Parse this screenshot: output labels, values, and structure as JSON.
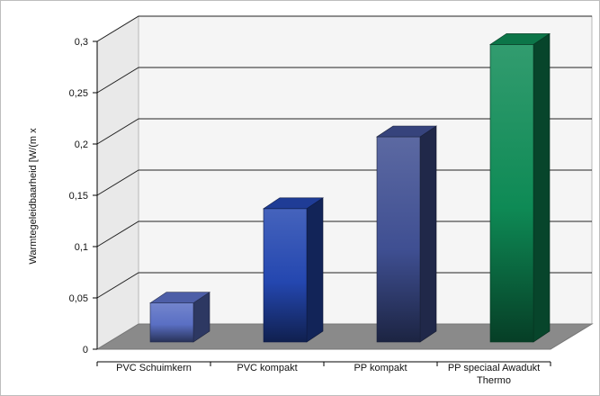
{
  "chart_data": {
    "type": "bar",
    "title": "",
    "xlabel": "",
    "ylabel": "Warmtegeleidbaarheid [W/(m x",
    "ylim": [
      0,
      0.3
    ],
    "ytick_values": [
      0,
      0.05,
      0.1,
      0.15,
      0.2,
      0.25,
      0.3
    ],
    "ytick_labels": [
      "0",
      "0,05",
      "0,1",
      "0,15",
      "0,2",
      "0,25",
      "0,3"
    ],
    "categories": [
      [
        "PVC Schuimkern"
      ],
      [
        "PVC kompakt"
      ],
      [
        "PP kompakt"
      ],
      [
        "PP speciaal Awadukt",
        "Thermo"
      ]
    ],
    "values": [
      0.038,
      0.13,
      0.2,
      0.29
    ],
    "colors": [
      "#5a6fc4",
      "#2447b0",
      "#3f4f92",
      "#0e8a55"
    ],
    "grid": true,
    "legend": "none",
    "style": "3d"
  }
}
